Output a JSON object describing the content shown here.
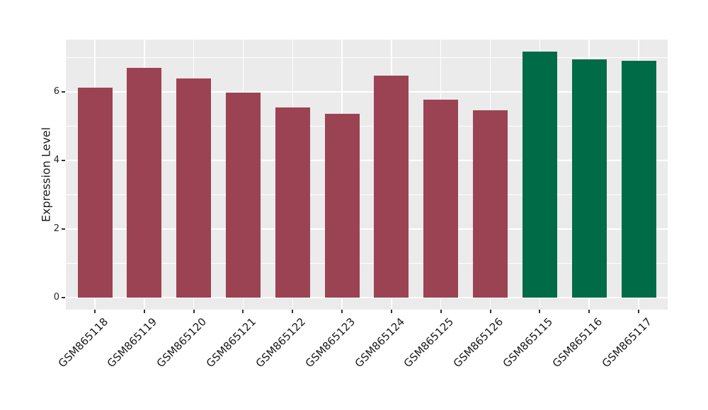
{
  "chart_data": {
    "type": "bar",
    "title": "",
    "xlabel": "",
    "ylabel": "Expression Level",
    "categories": [
      "GSM865118",
      "GSM865119",
      "GSM865120",
      "GSM865121",
      "GSM865122",
      "GSM865123",
      "GSM865124",
      "GSM865125",
      "GSM865126",
      "GSM865115",
      "GSM865116",
      "GSM865117"
    ],
    "values": [
      6.11,
      6.7,
      6.38,
      5.98,
      5.54,
      5.35,
      6.47,
      5.77,
      5.45,
      7.16,
      6.95,
      6.9
    ],
    "bar_colors": [
      "#9B4353",
      "#9B4353",
      "#9B4353",
      "#9B4353",
      "#9B4353",
      "#9B4353",
      "#9B4353",
      "#9B4353",
      "#9B4353",
      "#006B47",
      "#006B47",
      "#006B47"
    ],
    "yticks": [
      0,
      2,
      4,
      6
    ],
    "ytick_labels": [
      "0",
      "2",
      "4",
      "6"
    ],
    "minor_gridlines": [
      1,
      3,
      5,
      7
    ],
    "ylim": [
      -0.36,
      7.52
    ],
    "grid": true,
    "legend_position": "none",
    "panel_bg": "#EBEBEB",
    "grid_color": "#FFFFFF",
    "tick_color": "#333333"
  }
}
